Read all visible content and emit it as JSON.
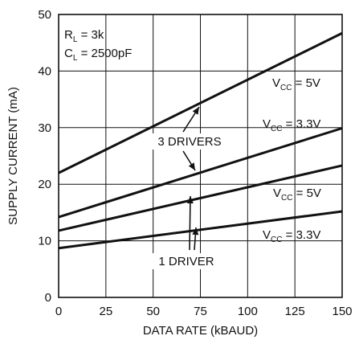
{
  "chart_data": {
    "type": "line",
    "xlabel": "DATA RATE (kBAUD)",
    "ylabel": "SUPPLY CURRENT (mA)",
    "xlim": [
      0,
      150
    ],
    "ylim": [
      0,
      50
    ],
    "xticks": [
      0,
      25,
      50,
      75,
      100,
      125,
      150
    ],
    "yticks": [
      0,
      10,
      20,
      30,
      40,
      50
    ],
    "grid": true,
    "conditions": [
      {
        "main": "R",
        "sub": "L",
        "rest": " = 3k"
      },
      {
        "main": "C",
        "sub": "L",
        "rest": " = 2500pF"
      }
    ],
    "series": [
      {
        "name": "3 DRIVERS V_CC = 5V",
        "x": [
          0,
          150
        ],
        "y": [
          22,
          46.7
        ]
      },
      {
        "name": "3 DRIVERS V_CC = 3.3V",
        "x": [
          0,
          150
        ],
        "y": [
          14.2,
          29.9
        ]
      },
      {
        "name": "1 DRIVER V_CC = 5V",
        "x": [
          0,
          150
        ],
        "y": [
          11.8,
          23.3
        ]
      },
      {
        "name": "1 DRIVER V_CC = 3.3V",
        "x": [
          0,
          150
        ],
        "y": [
          8.7,
          15.2
        ]
      }
    ],
    "series_labels": [
      {
        "main": "V",
        "sub": "CC",
        "rest": " = 5V"
      },
      {
        "main": "V",
        "sub": "CC",
        "rest": " = 3.3V"
      },
      {
        "main": "V",
        "sub": "CC",
        "rest": " = 5V"
      },
      {
        "main": "V",
        "sub": "CC",
        "rest": " = 3.3V"
      }
    ],
    "group_labels": [
      "3 DRIVERS",
      "1 DRIVER"
    ]
  }
}
